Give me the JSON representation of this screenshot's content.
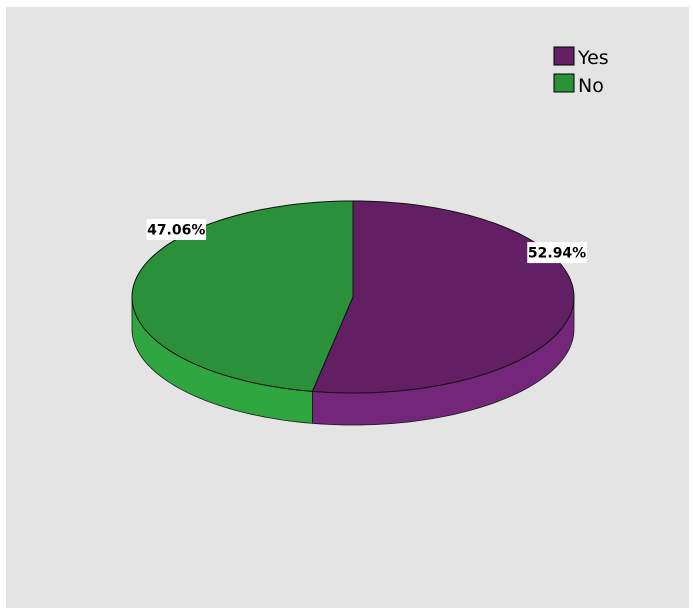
{
  "chart_data": {
    "type": "pie",
    "style": "3d-tilted",
    "categories": [
      "Yes",
      "No"
    ],
    "values": [
      52.94,
      47.06
    ],
    "value_labels": [
      "52.94%",
      "47.06%"
    ],
    "colors": [
      "#621f63",
      "#2a913a"
    ],
    "side_colors": [
      "#74267a",
      "#2fa640"
    ],
    "legend": {
      "placement": "top-right",
      "entries": [
        "Yes",
        "No"
      ]
    },
    "background": "#e4e4e4",
    "title": "",
    "xlabel": "",
    "ylabel": ""
  }
}
